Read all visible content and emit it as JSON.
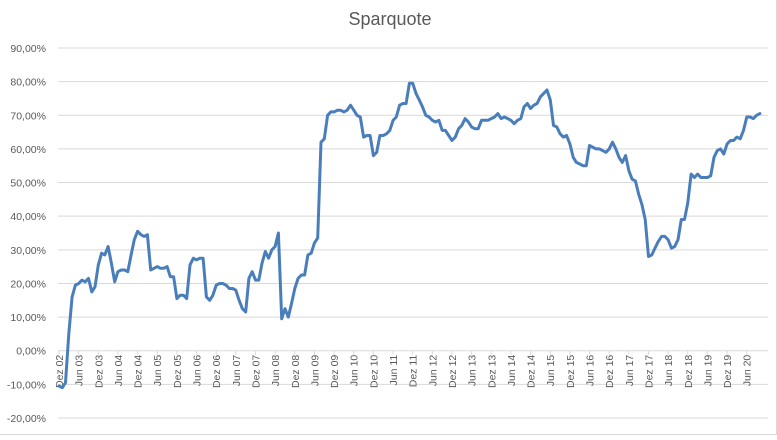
{
  "chart_data": {
    "type": "line",
    "title": "Sparquote",
    "xlabel": "",
    "ylabel": "",
    "ylim": [
      -0.2,
      0.9
    ],
    "y_ticks": [
      "90,00%",
      "80,00%",
      "70,00%",
      "60,00%",
      "50,00%",
      "40,00%",
      "30,00%",
      "20,00%",
      "10,00%",
      "0,00%",
      "-10,00%",
      "-20,00%"
    ],
    "y_tick_values": [
      0.9,
      0.8,
      0.7,
      0.6,
      0.5,
      0.4,
      0.3,
      0.2,
      0.1,
      0.0,
      -0.1,
      -0.2
    ],
    "x_tick_labels": [
      "Dez 02",
      "Jun 03",
      "Dez 03",
      "Jun 04",
      "Dez 04",
      "Jun 05",
      "Dez 05",
      "Jun 06",
      "Dez 06",
      "Jun 07",
      "Dez 07",
      "Jun 08",
      "Dez 08",
      "Jun 09",
      "Dez 09",
      "Jun 10",
      "Dez 10",
      "Jun 11",
      "Dez 11",
      "Jun 12",
      "Dez 12",
      "Jun 13",
      "Dez 13",
      "Jun 14",
      "Dez 14",
      "Jun 15",
      "Dez 15",
      "Jun 16",
      "Dez 16",
      "Jun 17",
      "Dez 17",
      "Jun 18",
      "Dez 18",
      "Jun 19",
      "Dez 19",
      "Jun 20"
    ],
    "grid": true,
    "legend": "none",
    "line_color": "#4a7ebb",
    "series": [
      {
        "name": "Sparquote",
        "x_months_from_dez02": [
          0,
          1,
          2,
          3,
          4,
          5,
          6,
          7,
          8,
          9,
          10,
          11,
          12,
          13,
          14,
          15,
          16,
          17,
          18,
          19,
          20,
          21,
          22,
          23,
          24,
          25,
          26,
          27,
          28,
          29,
          30,
          31,
          32,
          33,
          34,
          35,
          36,
          37,
          38,
          39,
          40,
          41,
          42,
          43,
          44,
          45,
          46,
          47,
          48,
          49,
          50,
          51,
          52,
          53,
          54,
          55,
          56,
          57,
          58,
          59,
          60,
          61,
          62,
          63,
          64,
          65,
          66,
          67,
          68,
          69,
          70,
          71,
          72,
          73,
          74,
          75,
          76,
          77,
          78,
          79,
          80,
          81,
          82,
          83,
          84,
          85,
          86,
          87,
          88,
          89,
          90,
          91,
          92,
          93,
          94,
          95,
          96,
          97,
          98,
          99,
          100,
          101,
          102,
          103,
          104,
          105,
          106,
          107,
          108,
          109,
          110,
          111,
          112,
          113,
          114,
          115,
          116,
          117,
          118,
          119,
          120,
          121,
          122,
          123,
          124,
          125,
          126,
          127,
          128,
          129,
          130,
          131,
          132,
          133,
          134,
          135,
          136,
          137,
          138,
          139,
          140,
          141,
          142,
          143,
          144,
          145,
          146,
          147,
          148,
          149,
          150,
          151,
          152,
          153,
          154,
          155,
          156,
          157,
          158,
          159,
          160,
          161,
          162,
          163,
          164,
          165,
          166,
          167,
          168,
          169,
          170,
          171,
          172,
          173,
          174,
          175,
          176,
          177,
          178,
          179,
          180,
          181,
          182,
          183,
          184,
          185,
          186,
          187,
          188,
          189,
          190,
          191,
          192,
          193,
          194,
          195,
          196,
          197,
          198,
          199,
          200,
          201,
          202,
          203,
          204,
          205,
          206,
          207,
          208,
          209,
          210,
          211,
          212,
          213,
          214
        ],
        "values": [
          -0.105,
          -0.11,
          -0.095,
          0.05,
          0.16,
          0.195,
          0.2,
          0.21,
          0.205,
          0.215,
          0.175,
          0.19,
          0.255,
          0.29,
          0.285,
          0.31,
          0.26,
          0.205,
          0.235,
          0.24,
          0.24,
          0.235,
          0.285,
          0.33,
          0.355,
          0.345,
          0.34,
          0.345,
          0.24,
          0.245,
          0.25,
          0.245,
          0.245,
          0.25,
          0.22,
          0.22,
          0.155,
          0.165,
          0.165,
          0.155,
          0.255,
          0.275,
          0.27,
          0.275,
          0.275,
          0.16,
          0.15,
          0.165,
          0.195,
          0.2,
          0.2,
          0.195,
          0.185,
          0.185,
          0.18,
          0.15,
          0.125,
          0.115,
          0.215,
          0.235,
          0.21,
          0.21,
          0.26,
          0.295,
          0.275,
          0.3,
          0.31,
          0.35,
          0.095,
          0.125,
          0.1,
          0.14,
          0.185,
          0.215,
          0.225,
          0.225,
          0.285,
          0.29,
          0.32,
          0.335,
          0.62,
          0.63,
          0.7,
          0.71,
          0.71,
          0.715,
          0.715,
          0.71,
          0.715,
          0.73,
          0.715,
          0.7,
          0.695,
          0.635,
          0.64,
          0.64,
          0.58,
          0.59,
          0.64,
          0.64,
          0.645,
          0.655,
          0.685,
          0.695,
          0.73,
          0.735,
          0.735,
          0.795,
          0.795,
          0.765,
          0.745,
          0.725,
          0.7,
          0.695,
          0.685,
          0.68,
          0.685,
          0.655,
          0.655,
          0.64,
          0.625,
          0.635,
          0.66,
          0.67,
          0.69,
          0.68,
          0.665,
          0.66,
          0.66,
          0.685,
          0.685,
          0.685,
          0.69,
          0.695,
          0.705,
          0.69,
          0.695,
          0.69,
          0.685,
          0.675,
          0.685,
          0.69,
          0.725,
          0.735,
          0.72,
          0.73,
          0.735,
          0.755,
          0.765,
          0.775,
          0.745,
          0.67,
          0.665,
          0.645,
          0.635,
          0.64,
          0.615,
          0.575,
          0.56,
          0.555,
          0.55,
          0.55,
          0.61,
          0.605,
          0.6,
          0.6,
          0.595,
          0.59,
          0.6,
          0.62,
          0.6,
          0.575,
          0.56,
          0.58,
          0.535,
          0.51,
          0.505,
          0.465,
          0.435,
          0.39,
          0.28,
          0.285,
          0.305,
          0.325,
          0.34,
          0.34,
          0.33,
          0.305,
          0.31,
          0.33,
          0.39,
          0.39,
          0.44,
          0.525,
          0.515,
          0.525,
          0.515,
          0.515,
          0.515,
          0.52,
          0.575,
          0.595,
          0.6,
          0.585,
          0.615,
          0.625,
          0.625,
          0.635,
          0.63,
          0.655,
          0.695,
          0.695,
          0.69,
          0.7,
          0.705,
          0.615
        ]
      }
    ]
  }
}
